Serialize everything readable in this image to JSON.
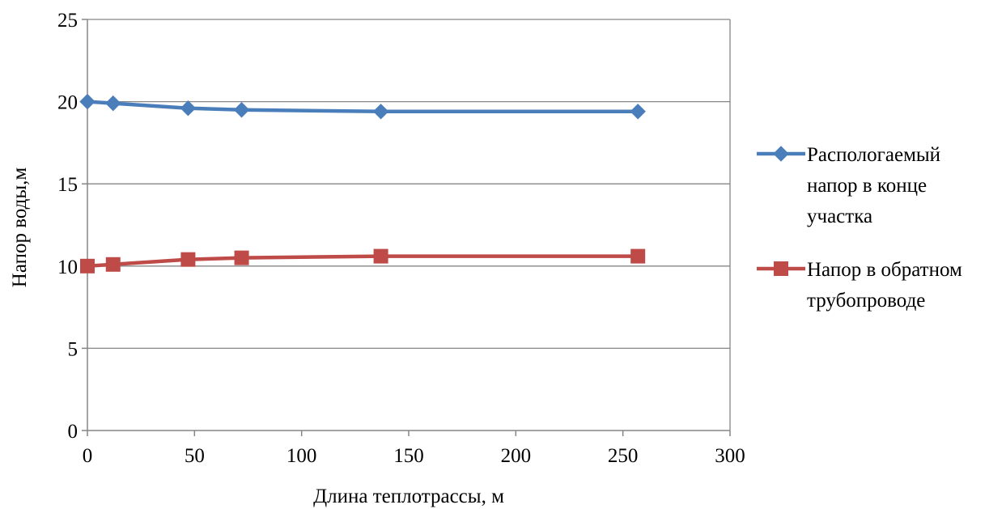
{
  "chart_data": {
    "type": "line",
    "title": "",
    "xlabel": "Длина теплотрассы, м",
    "ylabel": "Напор воды,м",
    "xlim": [
      0,
      300
    ],
    "ylim": [
      0,
      25
    ],
    "x_ticks": [
      0,
      50,
      100,
      150,
      200,
      250,
      300
    ],
    "y_ticks": [
      0,
      5,
      10,
      15,
      20,
      25
    ],
    "grid": "horizontal",
    "legend_position": "right",
    "series": [
      {
        "name_lines": [
          "Распологаемый",
          "напор в конце",
          "участка"
        ],
        "color": "#4a7ebb",
        "marker": "diamond",
        "x": [
          0,
          12,
          47,
          72,
          137,
          257
        ],
        "y": [
          20.0,
          19.9,
          19.6,
          19.5,
          19.4,
          19.4
        ]
      },
      {
        "name_lines": [
          "Напор в обратном",
          "трубопроводе"
        ],
        "color": "#be4b48",
        "marker": "square",
        "x": [
          0,
          12,
          47,
          72,
          137,
          257
        ],
        "y": [
          10.0,
          10.1,
          10.4,
          10.5,
          10.6,
          10.6
        ]
      }
    ]
  }
}
